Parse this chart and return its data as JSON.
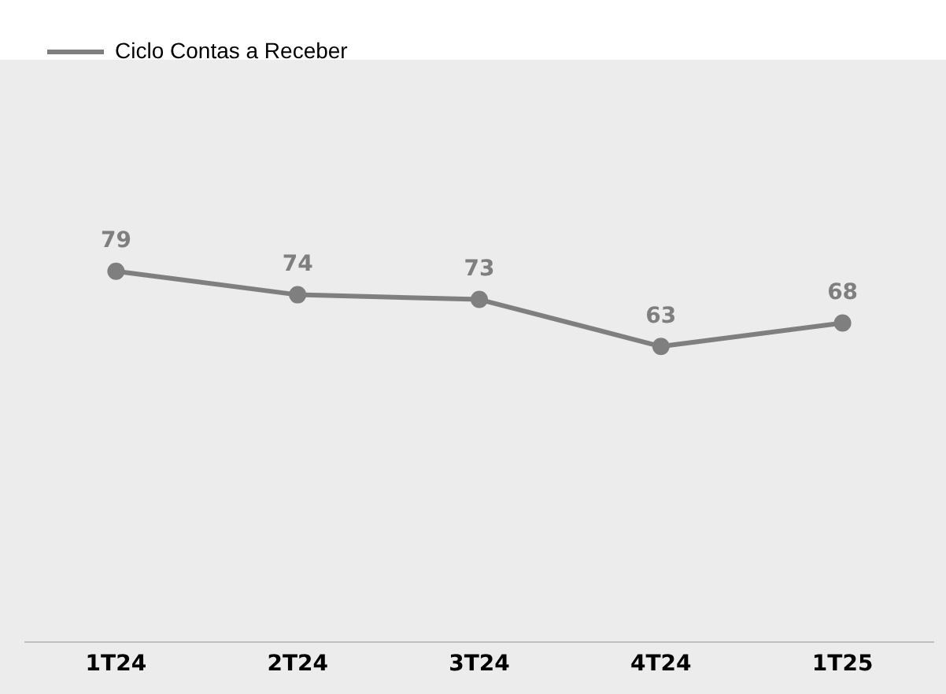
{
  "chart_data": {
    "type": "line",
    "categories": [
      "1T24",
      "2T24",
      "3T24",
      "4T24",
      "1T25"
    ],
    "series": [
      {
        "name": "Ciclo Contas a Receber",
        "color": "#7f7f7f",
        "values": [
          79,
          74,
          73,
          63,
          68
        ]
      }
    ],
    "tick_labels": "x",
    "data_labels": true,
    "legend": "top left",
    "marker": "circle",
    "line_style": "solid"
  }
}
